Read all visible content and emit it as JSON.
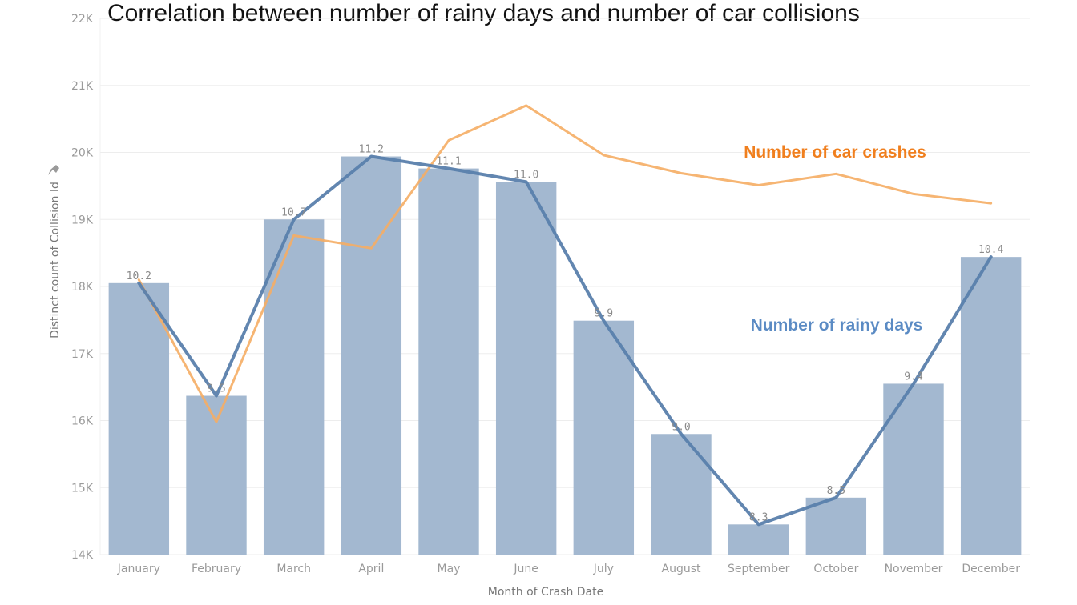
{
  "chart_data": {
    "type": "bar",
    "title": "Correlation between number of rainy days and number of car collisions",
    "xlabel": "Month of Crash Date",
    "ylabel": "Distinct count of Collision Id",
    "categories": [
      "January",
      "February",
      "March",
      "April",
      "May",
      "June",
      "July",
      "August",
      "September",
      "October",
      "November",
      "December"
    ],
    "ylim": [
      14000,
      22000
    ],
    "yticks": [
      14000,
      15000,
      16000,
      17000,
      18000,
      19000,
      20000,
      21000,
      22000
    ],
    "ytick_labels": [
      "14K",
      "15K",
      "16K",
      "17K",
      "18K",
      "19K",
      "20K",
      "21K",
      "22K"
    ],
    "grid": true,
    "series": [
      {
        "kind": "bar",
        "values": [
          18050,
          16370,
          19000,
          19940,
          19760,
          19560,
          17490,
          15800,
          14450,
          14850,
          16550,
          18440
        ],
        "labels": [
          "10.2",
          "9.5",
          "10.7",
          "11.2",
          "11.1",
          "11.0",
          "9.9",
          "9.0",
          "8.3",
          "8.5",
          "9.4",
          "10.4"
        ],
        "color": "#a3b8d0"
      },
      {
        "kind": "line",
        "values": [
          18100,
          15980,
          18760,
          18570,
          20180,
          20700,
          19960,
          19690,
          19510,
          19680,
          19380,
          19240
        ],
        "color": "#f5ad64"
      },
      {
        "kind": "line",
        "values": [
          18050,
          16370,
          19000,
          19940,
          19760,
          19560,
          17490,
          15800,
          14450,
          14850,
          16550,
          18440
        ],
        "color": "#5a7fac"
      }
    ],
    "annotations": [
      {
        "text": "Number of car crashes",
        "color": "#f07f1e"
      },
      {
        "text": "Number of rainy days",
        "color": "#5b8bc4"
      }
    ]
  }
}
